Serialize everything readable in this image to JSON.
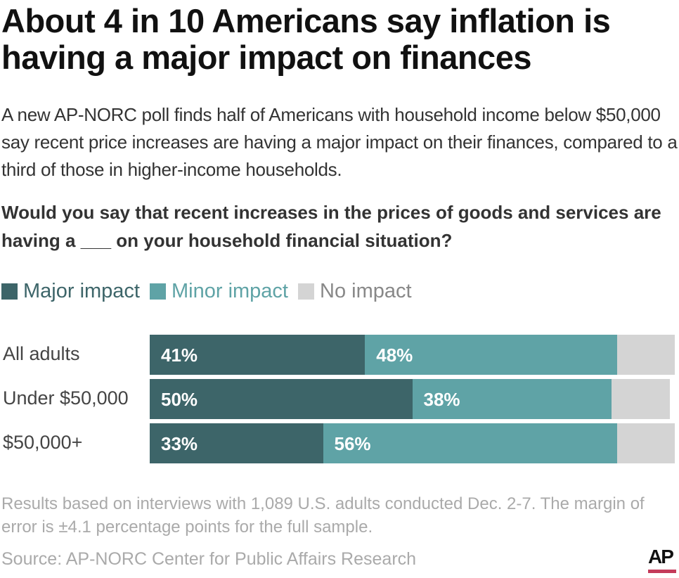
{
  "title": "About 4 in 10 Americans say inflation is having a major impact on finances",
  "subtitle": "A new AP-NORC poll finds half of Americans with household income below $50,000 say recent price increases are having a major impact on their finances, compared to a third of those in higher-income households.",
  "question": "Would you say that recent increases in the prices of goods and services are having a ___ on your household financial situation?",
  "footnote": "Results based on interviews with 1,089 U.S. adults conducted Dec. 2-7. The margin of error is ±4.1 percentage points for the full sample.",
  "source": "Source: AP-NORC Center for Public Affairs Research",
  "logo": "AP",
  "chart_data": {
    "type": "bar",
    "orientation": "horizontal",
    "stacked": true,
    "legend_position": "top-left",
    "grid": false,
    "xlim": [
      0,
      100
    ],
    "categories": [
      "All adults",
      "Under $50,000",
      "$50,000+"
    ],
    "series": [
      {
        "name": "Major impact",
        "color": "#3d6569",
        "values": [
          41,
          50,
          33
        ],
        "labels": [
          "41%",
          "50%",
          "33%"
        ]
      },
      {
        "name": "Minor impact",
        "color": "#5fa3a6",
        "values": [
          48,
          38,
          56
        ],
        "labels": [
          "48%",
          "38%",
          "56%"
        ]
      },
      {
        "name": "No impact",
        "color": "#d4d4d4",
        "values": [
          11,
          11,
          11
        ]
      }
    ]
  }
}
